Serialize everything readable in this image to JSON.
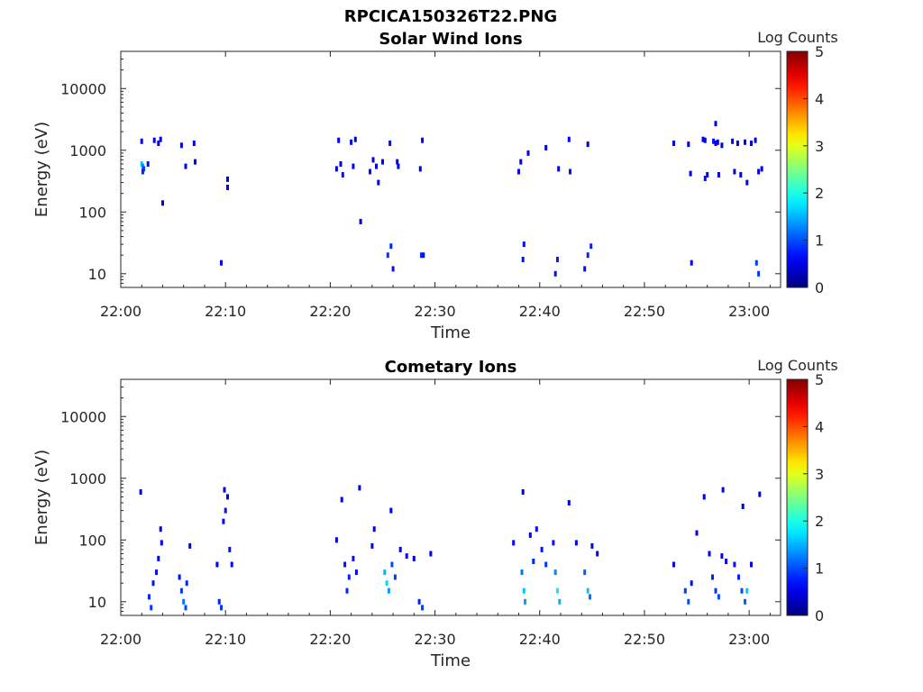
{
  "figure_title": "RPCICA150326T22.PNG",
  "chart_data": [
    {
      "type": "heatmap",
      "title": "Solar Wind Ions",
      "xlabel": "Time",
      "ylabel": "Energy (eV)",
      "x_ticks": [
        "22:00",
        "22:10",
        "22:20",
        "22:30",
        "22:40",
        "22:50",
        "23:00"
      ],
      "y_ticks": [
        "10",
        "100",
        "1000",
        "10000"
      ],
      "y_scale": "log",
      "ylim": [
        6,
        40000
      ],
      "xlim_minutes": [
        0,
        63
      ],
      "colorbar": {
        "label": "Log Counts",
        "ticks": [
          "0",
          "1",
          "2",
          "3",
          "4",
          "5"
        ],
        "range": [
          0,
          5
        ],
        "colormap": "jet"
      },
      "cells": [
        [
          2.0,
          1400,
          0.5
        ],
        [
          2.0,
          600,
          1.6
        ],
        [
          2.1,
          550,
          1.3
        ],
        [
          2.2,
          500,
          1.0
        ],
        [
          2.1,
          450,
          0.8
        ],
        [
          2.6,
          600,
          0.7
        ],
        [
          3.2,
          1450,
          0.6
        ],
        [
          3.6,
          1300,
          0.5
        ],
        [
          3.8,
          1500,
          0.6
        ],
        [
          4.0,
          140,
          0.5
        ],
        [
          5.8,
          1200,
          0.5
        ],
        [
          6.2,
          550,
          0.5
        ],
        [
          7.0,
          1300,
          0.5
        ],
        [
          7.1,
          650,
          0.6
        ],
        [
          10.2,
          340,
          0.5
        ],
        [
          10.2,
          250,
          0.5
        ],
        [
          9.6,
          15,
          0.6
        ],
        [
          20.8,
          1450,
          0.6
        ],
        [
          20.6,
          500,
          0.5
        ],
        [
          21.0,
          600,
          0.5
        ],
        [
          21.2,
          400,
          0.7
        ],
        [
          22.0,
          1350,
          0.6
        ],
        [
          22.4,
          1500,
          0.6
        ],
        [
          22.2,
          550,
          0.5
        ],
        [
          22.9,
          70,
          0.4
        ],
        [
          23.8,
          450,
          0.7
        ],
        [
          24.1,
          700,
          0.5
        ],
        [
          24.4,
          550,
          0.5
        ],
        [
          24.6,
          300,
          0.5
        ],
        [
          25.0,
          650,
          0.5
        ],
        [
          25.7,
          1300,
          0.7
        ],
        [
          25.5,
          20,
          0.9
        ],
        [
          25.8,
          28,
          0.8
        ],
        [
          26.0,
          12,
          0.7
        ],
        [
          26.4,
          650,
          0.6
        ],
        [
          26.5,
          550,
          0.5
        ],
        [
          28.6,
          500,
          0.5
        ],
        [
          28.8,
          1450,
          0.6
        ],
        [
          28.7,
          20,
          0.8
        ],
        [
          28.9,
          20,
          0.7
        ],
        [
          38.0,
          450,
          0.6
        ],
        [
          38.2,
          650,
          0.5
        ],
        [
          38.5,
          30,
          0.7
        ],
        [
          38.4,
          17,
          0.7
        ],
        [
          38.9,
          900,
          0.5
        ],
        [
          40.6,
          1100,
          0.5
        ],
        [
          41.8,
          500,
          0.5
        ],
        [
          41.5,
          10,
          0.7
        ],
        [
          41.7,
          17,
          0.8
        ],
        [
          42.8,
          1500,
          0.6
        ],
        [
          42.9,
          450,
          0.7
        ],
        [
          44.6,
          1250,
          0.5
        ],
        [
          44.3,
          12,
          0.7
        ],
        [
          44.6,
          20,
          0.8
        ],
        [
          44.9,
          28,
          0.8
        ],
        [
          52.8,
          1300,
          0.5
        ],
        [
          54.2,
          1250,
          0.5
        ],
        [
          54.4,
          420,
          0.5
        ],
        [
          54.5,
          15,
          0.6
        ],
        [
          55.6,
          1500,
          0.6
        ],
        [
          55.8,
          1450,
          0.5
        ],
        [
          55.8,
          350,
          0.7
        ],
        [
          56.0,
          400,
          0.6
        ],
        [
          56.6,
          1400,
          0.7
        ],
        [
          56.8,
          1300,
          0.6
        ],
        [
          57.0,
          1350,
          0.6
        ],
        [
          56.8,
          2700,
          0.5
        ],
        [
          57.1,
          400,
          0.5
        ],
        [
          57.4,
          1200,
          0.5
        ],
        [
          58.4,
          1400,
          0.6
        ],
        [
          58.9,
          1300,
          0.5
        ],
        [
          58.6,
          450,
          0.5
        ],
        [
          59.2,
          400,
          0.5
        ],
        [
          59.6,
          1350,
          0.6
        ],
        [
          59.8,
          300,
          0.6
        ],
        [
          60.2,
          1300,
          0.5
        ],
        [
          60.6,
          1450,
          0.5
        ],
        [
          60.9,
          450,
          0.6
        ],
        [
          61.2,
          500,
          0.5
        ],
        [
          60.7,
          15,
          0.9
        ],
        [
          60.9,
          10,
          0.9
        ]
      ]
    },
    {
      "type": "heatmap",
      "title": "Cometary Ions",
      "xlabel": "Time",
      "ylabel": "Energy (eV)",
      "x_ticks": [
        "22:00",
        "22:10",
        "22:20",
        "22:30",
        "22:40",
        "22:50",
        "23:00"
      ],
      "y_ticks": [
        "10",
        "100",
        "1000",
        "10000"
      ],
      "y_scale": "log",
      "ylim": [
        6,
        40000
      ],
      "xlim_minutes": [
        0,
        63
      ],
      "colorbar": {
        "label": "Log Counts",
        "ticks": [
          "0",
          "1",
          "2",
          "3",
          "4",
          "5"
        ],
        "range": [
          0,
          5
        ],
        "colormap": "jet"
      },
      "cells": [
        [
          1.9,
          600,
          0.6
        ],
        [
          2.7,
          12,
          0.8
        ],
        [
          2.9,
          8,
          0.9
        ],
        [
          3.1,
          20,
          0.7
        ],
        [
          3.4,
          30,
          0.7
        ],
        [
          3.6,
          50,
          0.6
        ],
        [
          3.8,
          150,
          0.5
        ],
        [
          3.9,
          90,
          0.6
        ],
        [
          5.6,
          25,
          0.7
        ],
        [
          5.8,
          15,
          0.9
        ],
        [
          6.0,
          10,
          1.2
        ],
        [
          6.2,
          8,
          1.0
        ],
        [
          6.3,
          20,
          0.8
        ],
        [
          6.6,
          80,
          0.5
        ],
        [
          9.2,
          40,
          0.6
        ],
        [
          9.4,
          10,
          0.8
        ],
        [
          9.6,
          8,
          0.9
        ],
        [
          9.8,
          200,
          0.6
        ],
        [
          10.0,
          300,
          0.7
        ],
        [
          10.2,
          500,
          0.6
        ],
        [
          10.4,
          70,
          0.7
        ],
        [
          10.6,
          40,
          0.6
        ],
        [
          9.9,
          650,
          0.5
        ],
        [
          20.6,
          100,
          0.5
        ],
        [
          21.1,
          450,
          0.5
        ],
        [
          21.4,
          40,
          0.7
        ],
        [
          21.6,
          15,
          0.8
        ],
        [
          21.8,
          25,
          0.8
        ],
        [
          22.2,
          50,
          0.7
        ],
        [
          22.5,
          30,
          0.6
        ],
        [
          22.8,
          700,
          0.5
        ],
        [
          24.0,
          80,
          0.6
        ],
        [
          24.2,
          150,
          0.5
        ],
        [
          25.2,
          30,
          1.5
        ],
        [
          25.4,
          20,
          1.7
        ],
        [
          25.6,
          15,
          1.4
        ],
        [
          25.9,
          40,
          1.0
        ],
        [
          26.2,
          25,
          0.9
        ],
        [
          25.8,
          300,
          0.5
        ],
        [
          26.7,
          70,
          0.6
        ],
        [
          27.3,
          55,
          0.6
        ],
        [
          28.0,
          50,
          0.5
        ],
        [
          28.5,
          10,
          0.8
        ],
        [
          28.8,
          8,
          0.9
        ],
        [
          29.6,
          60,
          0.5
        ],
        [
          37.5,
          90,
          0.6
        ],
        [
          38.3,
          30,
          1.2
        ],
        [
          38.5,
          15,
          1.6
        ],
        [
          38.6,
          10,
          1.4
        ],
        [
          38.4,
          600,
          0.5
        ],
        [
          39.1,
          120,
          0.6
        ],
        [
          39.4,
          45,
          0.8
        ],
        [
          39.7,
          150,
          0.7
        ],
        [
          40.2,
          70,
          0.7
        ],
        [
          40.6,
          40,
          0.9
        ],
        [
          41.5,
          30,
          1.3
        ],
        [
          41.7,
          15,
          1.8
        ],
        [
          41.9,
          10,
          1.5
        ],
        [
          41.3,
          90,
          0.7
        ],
        [
          42.8,
          400,
          0.5
        ],
        [
          43.5,
          90,
          0.6
        ],
        [
          44.3,
          30,
          1.1
        ],
        [
          44.6,
          15,
          1.6
        ],
        [
          44.8,
          12,
          1.2
        ],
        [
          45.0,
          80,
          0.6
        ],
        [
          45.5,
          60,
          0.5
        ],
        [
          52.8,
          40,
          0.5
        ],
        [
          53.9,
          15,
          0.9
        ],
        [
          54.2,
          10,
          1.0
        ],
        [
          54.5,
          20,
          0.7
        ],
        [
          55.0,
          130,
          0.5
        ],
        [
          55.7,
          500,
          0.5
        ],
        [
          56.2,
          60,
          0.6
        ],
        [
          56.5,
          25,
          0.8
        ],
        [
          56.8,
          15,
          0.9
        ],
        [
          57.1,
          12,
          1.0
        ],
        [
          57.5,
          650,
          0.6
        ],
        [
          57.4,
          55,
          0.6
        ],
        [
          57.8,
          45,
          0.6
        ],
        [
          58.6,
          40,
          0.7
        ],
        [
          59.0,
          25,
          0.8
        ],
        [
          59.3,
          15,
          1.0
        ],
        [
          59.6,
          10,
          1.1
        ],
        [
          59.8,
          15,
          1.6
        ],
        [
          59.4,
          350,
          0.5
        ],
        [
          60.2,
          40,
          0.5
        ],
        [
          61.0,
          550,
          0.5
        ]
      ]
    }
  ]
}
